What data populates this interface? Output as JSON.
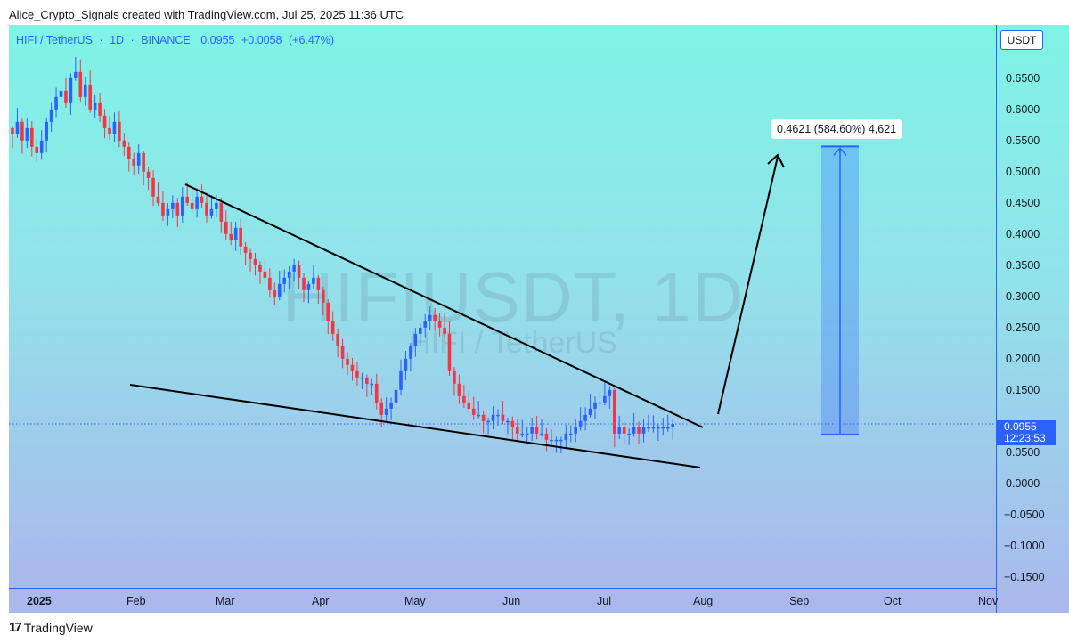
{
  "header": {
    "publish_text": "Alice_Crypto_Signals created with TradingView.com, Jul 25, 2025 11:36 UTC"
  },
  "symbol": {
    "name": "HIFI / TetherUS",
    "interval": "1D",
    "exchange": "BINANCE",
    "price": "0.0955",
    "change": "+0.0058",
    "change_pct": "(+6.47%)",
    "separator": "·"
  },
  "watermark": {
    "main": "HIFIUSDT, 1D",
    "sub": "HIFI / TetherUS"
  },
  "price_axis": {
    "unit": "USDT",
    "ticks": [
      "0.6500",
      "0.6000",
      "0.5500",
      "0.5000",
      "0.4500",
      "0.4000",
      "0.3500",
      "0.3000",
      "0.2500",
      "0.2000",
      "0.1500",
      "0.0955",
      "0.0500",
      "0.0000",
      "−0.0500",
      "−0.1000",
      "−0.1500"
    ],
    "current_price": "0.0955",
    "countdown": "12:23:53"
  },
  "time_axis": {
    "ticks": [
      "2025",
      "Feb",
      "Mar",
      "Apr",
      "May",
      "Jun",
      "Jul",
      "Aug",
      "Sep",
      "Oct",
      "Nov"
    ]
  },
  "measure": {
    "label": "0.4621 (584.60%) 4,621"
  },
  "footer": {
    "brand": "TradingView"
  },
  "colors": {
    "up": "#2962ff",
    "down": "#f23645",
    "accent": "#2962ff",
    "measure_fill": "rgba(41,98,255,0.28)",
    "trendline": "#000000"
  },
  "chart_data": {
    "type": "candlestick",
    "title": "HIFI / TetherUS · 1D · BINANCE",
    "y_unit": "USDT",
    "ylim": [
      -0.16,
      0.71
    ],
    "x_ticks": [
      "2025",
      "Feb",
      "Mar",
      "Apr",
      "May",
      "Jun",
      "Jul",
      "Aug",
      "Sep",
      "Oct",
      "Nov"
    ],
    "close_series": [
      0.56,
      0.58,
      0.55,
      0.57,
      0.54,
      0.53,
      0.55,
      0.58,
      0.6,
      0.62,
      0.63,
      0.61,
      0.65,
      0.66,
      0.62,
      0.64,
      0.6,
      0.61,
      0.59,
      0.57,
      0.56,
      0.58,
      0.55,
      0.54,
      0.52,
      0.51,
      0.53,
      0.5,
      0.49,
      0.46,
      0.45,
      0.43,
      0.44,
      0.45,
      0.43,
      0.46,
      0.45,
      0.44,
      0.46,
      0.45,
      0.43,
      0.44,
      0.45,
      0.42,
      0.4,
      0.39,
      0.41,
      0.38,
      0.37,
      0.36,
      0.35,
      0.34,
      0.33,
      0.31,
      0.3,
      0.32,
      0.33,
      0.34,
      0.35,
      0.33,
      0.31,
      0.32,
      0.33,
      0.31,
      0.29,
      0.26,
      0.24,
      0.22,
      0.2,
      0.19,
      0.18,
      0.17,
      0.17,
      0.16,
      0.16,
      0.13,
      0.11,
      0.12,
      0.13,
      0.15,
      0.18,
      0.2,
      0.22,
      0.24,
      0.25,
      0.26,
      0.27,
      0.26,
      0.25,
      0.24,
      0.18,
      0.16,
      0.14,
      0.13,
      0.12,
      0.11,
      0.11,
      0.1,
      0.1,
      0.11,
      0.11,
      0.1,
      0.1,
      0.09,
      0.08,
      0.08,
      0.08,
      0.09,
      0.08,
      0.08,
      0.07,
      0.07,
      0.07,
      0.07,
      0.08,
      0.08,
      0.09,
      0.1,
      0.11,
      0.12,
      0.13,
      0.13,
      0.14,
      0.15,
      0.08,
      0.09,
      0.08,
      0.08,
      0.09,
      0.08,
      0.09,
      0.09,
      0.09,
      0.09,
      0.09,
      0.09,
      0.0955
    ],
    "current_price": 0.0955,
    "annotations": [
      {
        "type": "trendline",
        "label": "upper wedge line",
        "from": [
          "mid-Feb",
          0.48
        ],
        "to": [
          "end-Jul",
          0.1
        ]
      },
      {
        "type": "trendline",
        "label": "lower wedge line",
        "from": [
          "mid-Jan",
          0.17
        ],
        "to": [
          "end-Jul",
          0.03
        ]
      },
      {
        "type": "price_range",
        "from": 0.0785,
        "to": 0.5406,
        "change": 0.4621,
        "change_pct": 584.6,
        "ticks": 4621
      }
    ]
  }
}
